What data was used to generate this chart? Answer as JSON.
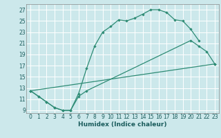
{
  "bg_color": "#cce8eb",
  "line_color": "#2d8b74",
  "grid_color": "#ffffff",
  "xlabel": "Humidex (Indice chaleur)",
  "curve1_x": [
    0,
    1,
    2,
    3,
    4,
    5,
    6,
    7,
    8,
    9,
    10,
    11,
    12,
    13,
    14,
    15,
    16,
    17,
    18,
    19,
    20,
    21
  ],
  "curve1_y": [
    12.5,
    11.5,
    10.5,
    9.5,
    9.0,
    9.0,
    12.0,
    16.5,
    20.5,
    23.0,
    24.0,
    25.2,
    25.0,
    25.5,
    26.2,
    27.0,
    27.0,
    26.5,
    25.2,
    25.0,
    23.5,
    21.5
  ],
  "curve2_x": [
    0,
    1,
    2,
    3,
    4,
    5,
    6,
    7,
    20,
    21,
    22,
    23
  ],
  "curve2_y": [
    12.5,
    11.5,
    10.5,
    9.5,
    9.0,
    9.0,
    11.5,
    12.5,
    21.5,
    20.5,
    19.5,
    17.3
  ],
  "curve3_x": [
    0,
    23
  ],
  "curve3_y": [
    12.5,
    17.3
  ],
  "xlim": [
    -0.5,
    23.5
  ],
  "ylim": [
    8.5,
    28.0
  ],
  "yticks": [
    9,
    11,
    13,
    15,
    17,
    19,
    21,
    23,
    25,
    27
  ],
  "xticks": [
    0,
    1,
    2,
    3,
    4,
    5,
    6,
    7,
    8,
    9,
    10,
    11,
    12,
    13,
    14,
    15,
    16,
    17,
    18,
    19,
    20,
    21,
    22,
    23
  ],
  "tick_fontsize": 5.5,
  "xlabel_fontsize": 6.5
}
